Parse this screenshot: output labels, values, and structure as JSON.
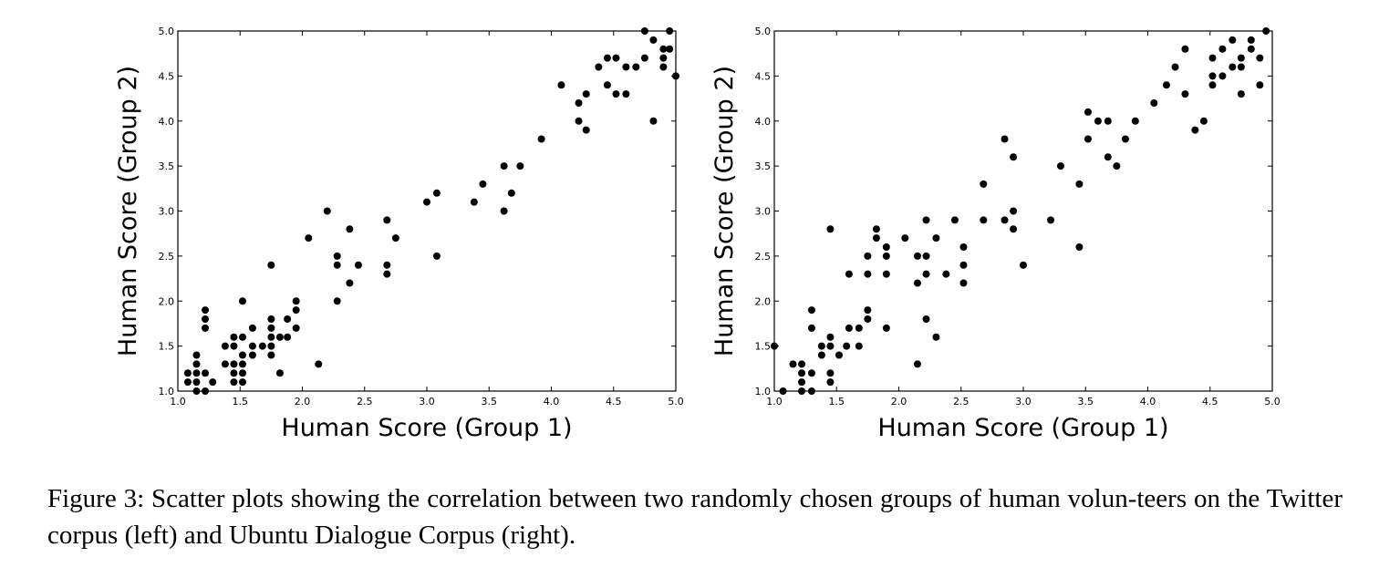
{
  "chart_data": [
    {
      "type": "scatter",
      "title": "",
      "xlabel": "Human Score (Group 1)",
      "ylabel": "Human Score (Group 2)",
      "xlim": [
        1.0,
        5.0
      ],
      "ylim": [
        1.0,
        5.0
      ],
      "xticks": [
        "1.0",
        "1.5",
        "2.0",
        "2.5",
        "3.0",
        "3.5",
        "4.0",
        "4.5",
        "5.0"
      ],
      "yticks": [
        "1.0",
        "1.5",
        "2.0",
        "2.5",
        "3.0",
        "3.5",
        "4.0",
        "4.5",
        "5.0"
      ],
      "grid": false,
      "marker_color": "#000000",
      "points": [
        [
          1.08,
          1.2
        ],
        [
          1.08,
          1.1
        ],
        [
          1.15,
          1.4
        ],
        [
          1.15,
          1.3
        ],
        [
          1.15,
          1.2
        ],
        [
          1.15,
          1.1
        ],
        [
          1.15,
          1.0
        ],
        [
          1.22,
          1.9
        ],
        [
          1.22,
          1.8
        ],
        [
          1.22,
          1.7
        ],
        [
          1.22,
          1.2
        ],
        [
          1.22,
          1.0
        ],
        [
          1.28,
          1.1
        ],
        [
          1.38,
          1.5
        ],
        [
          1.38,
          1.3
        ],
        [
          1.45,
          1.6
        ],
        [
          1.45,
          1.5
        ],
        [
          1.45,
          1.3
        ],
        [
          1.45,
          1.2
        ],
        [
          1.45,
          1.1
        ],
        [
          1.52,
          2.0
        ],
        [
          1.52,
          1.6
        ],
        [
          1.52,
          1.4
        ],
        [
          1.52,
          1.3
        ],
        [
          1.52,
          1.2
        ],
        [
          1.52,
          1.1
        ],
        [
          1.6,
          1.7
        ],
        [
          1.6,
          1.5
        ],
        [
          1.6,
          1.4
        ],
        [
          1.68,
          1.5
        ],
        [
          1.75,
          2.4
        ],
        [
          1.75,
          1.8
        ],
        [
          1.75,
          1.7
        ],
        [
          1.75,
          1.6
        ],
        [
          1.75,
          1.5
        ],
        [
          1.75,
          1.4
        ],
        [
          1.82,
          1.6
        ],
        [
          1.82,
          1.2
        ],
        [
          1.88,
          1.8
        ],
        [
          1.88,
          1.6
        ],
        [
          1.95,
          2.0
        ],
        [
          1.95,
          1.9
        ],
        [
          1.95,
          1.7
        ],
        [
          2.05,
          2.7
        ],
        [
          2.13,
          1.3
        ],
        [
          2.2,
          3.0
        ],
        [
          2.28,
          2.5
        ],
        [
          2.28,
          2.4
        ],
        [
          2.28,
          2.0
        ],
        [
          2.38,
          2.8
        ],
        [
          2.38,
          2.2
        ],
        [
          2.45,
          2.4
        ],
        [
          2.68,
          2.9
        ],
        [
          2.68,
          2.4
        ],
        [
          2.68,
          2.3
        ],
        [
          2.75,
          2.7
        ],
        [
          3.0,
          3.1
        ],
        [
          3.08,
          3.2
        ],
        [
          3.08,
          2.5
        ],
        [
          3.38,
          3.1
        ],
        [
          3.45,
          3.3
        ],
        [
          3.62,
          3.5
        ],
        [
          3.62,
          3.0
        ],
        [
          3.68,
          3.2
        ],
        [
          3.75,
          3.5
        ],
        [
          3.92,
          3.8
        ],
        [
          4.08,
          4.4
        ],
        [
          4.22,
          4.2
        ],
        [
          4.22,
          4.0
        ],
        [
          4.28,
          4.3
        ],
        [
          4.28,
          3.9
        ],
        [
          4.38,
          4.6
        ],
        [
          4.45,
          4.7
        ],
        [
          4.45,
          4.4
        ],
        [
          4.52,
          4.7
        ],
        [
          4.52,
          4.3
        ],
        [
          4.6,
          4.6
        ],
        [
          4.6,
          4.3
        ],
        [
          4.68,
          4.6
        ],
        [
          4.75,
          5.0
        ],
        [
          4.75,
          4.7
        ],
        [
          4.82,
          4.9
        ],
        [
          4.82,
          4.0
        ],
        [
          4.9,
          4.8
        ],
        [
          4.9,
          4.7
        ],
        [
          4.9,
          4.6
        ],
        [
          4.95,
          5.0
        ],
        [
          4.95,
          4.8
        ],
        [
          5.0,
          4.5
        ]
      ]
    },
    {
      "type": "scatter",
      "title": "",
      "xlabel": "Human Score (Group 1)",
      "ylabel": "Human Score (Group 2)",
      "xlim": [
        1.0,
        5.0
      ],
      "ylim": [
        1.0,
        5.0
      ],
      "xticks": [
        "1.0",
        "1.5",
        "2.0",
        "2.5",
        "3.0",
        "3.5",
        "4.0",
        "4.5",
        "5.0"
      ],
      "yticks": [
        "1.0",
        "1.5",
        "2.0",
        "2.5",
        "3.0",
        "3.5",
        "4.0",
        "4.5",
        "5.0"
      ],
      "grid": false,
      "marker_color": "#000000",
      "points": [
        [
          1.0,
          1.5
        ],
        [
          1.07,
          1.0
        ],
        [
          1.15,
          1.3
        ],
        [
          1.22,
          1.3
        ],
        [
          1.22,
          1.2
        ],
        [
          1.22,
          1.1
        ],
        [
          1.22,
          1.0
        ],
        [
          1.3,
          1.9
        ],
        [
          1.3,
          1.7
        ],
        [
          1.3,
          1.2
        ],
        [
          1.3,
          1.0
        ],
        [
          1.38,
          1.5
        ],
        [
          1.38,
          1.4
        ],
        [
          1.45,
          2.8
        ],
        [
          1.45,
          1.6
        ],
        [
          1.45,
          1.5
        ],
        [
          1.45,
          1.2
        ],
        [
          1.45,
          1.1
        ],
        [
          1.52,
          1.4
        ],
        [
          1.58,
          1.5
        ],
        [
          1.6,
          2.3
        ],
        [
          1.6,
          1.7
        ],
        [
          1.68,
          1.7
        ],
        [
          1.68,
          1.5
        ],
        [
          1.75,
          2.5
        ],
        [
          1.75,
          2.3
        ],
        [
          1.75,
          1.9
        ],
        [
          1.75,
          1.8
        ],
        [
          1.82,
          2.8
        ],
        [
          1.82,
          2.7
        ],
        [
          1.9,
          2.6
        ],
        [
          1.9,
          2.5
        ],
        [
          1.9,
          2.3
        ],
        [
          1.9,
          1.7
        ],
        [
          2.05,
          2.7
        ],
        [
          2.15,
          2.5
        ],
        [
          2.15,
          2.2
        ],
        [
          2.15,
          1.3
        ],
        [
          2.22,
          2.9
        ],
        [
          2.22,
          2.5
        ],
        [
          2.22,
          2.3
        ],
        [
          2.22,
          1.8
        ],
        [
          2.3,
          2.7
        ],
        [
          2.3,
          1.6
        ],
        [
          2.38,
          2.3
        ],
        [
          2.45,
          2.9
        ],
        [
          2.52,
          2.6
        ],
        [
          2.52,
          2.4
        ],
        [
          2.52,
          2.2
        ],
        [
          2.68,
          3.3
        ],
        [
          2.68,
          2.9
        ],
        [
          2.85,
          3.8
        ],
        [
          2.85,
          2.9
        ],
        [
          2.92,
          3.6
        ],
        [
          2.92,
          3.0
        ],
        [
          2.92,
          2.8
        ],
        [
          3.0,
          2.4
        ],
        [
          3.22,
          2.9
        ],
        [
          3.3,
          3.5
        ],
        [
          3.45,
          3.3
        ],
        [
          3.45,
          2.6
        ],
        [
          3.52,
          4.1
        ],
        [
          3.52,
          3.8
        ],
        [
          3.6,
          4.0
        ],
        [
          3.68,
          4.0
        ],
        [
          3.68,
          3.6
        ],
        [
          3.75,
          3.5
        ],
        [
          3.82,
          3.8
        ],
        [
          3.9,
          4.0
        ],
        [
          4.05,
          4.2
        ],
        [
          4.15,
          4.4
        ],
        [
          4.22,
          4.6
        ],
        [
          4.3,
          4.8
        ],
        [
          4.3,
          4.3
        ],
        [
          4.38,
          3.9
        ],
        [
          4.45,
          4.0
        ],
        [
          4.52,
          4.7
        ],
        [
          4.52,
          4.5
        ],
        [
          4.52,
          4.4
        ],
        [
          4.6,
          4.8
        ],
        [
          4.6,
          4.5
        ],
        [
          4.68,
          4.9
        ],
        [
          4.68,
          4.6
        ],
        [
          4.75,
          4.7
        ],
        [
          4.75,
          4.6
        ],
        [
          4.75,
          4.3
        ],
        [
          4.83,
          4.9
        ],
        [
          4.83,
          4.8
        ],
        [
          4.9,
          4.7
        ],
        [
          4.9,
          4.4
        ],
        [
          4.95,
          5.0
        ]
      ]
    }
  ],
  "caption": {
    "text": "Figure 3:  Scatter plots showing the correlation between two randomly chosen groups of human volun-teers on the Twitter corpus (left) and Ubuntu Dialogue Corpus (right)."
  }
}
